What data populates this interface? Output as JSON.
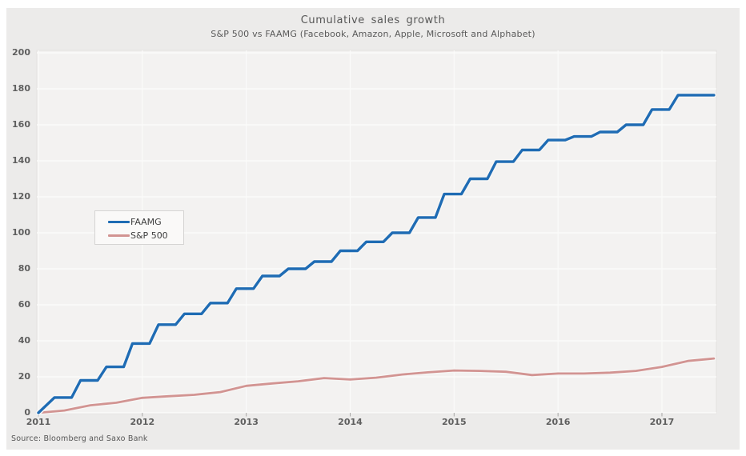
{
  "chart": {
    "title": "Cumulative  sales growth",
    "subtitle": "S&P 500 vs FAAMG (Facebook, Amazon, Apple, Microsoft and Alphabet)",
    "source_note": "Source: Bloomberg and Saxo Bank",
    "colors": {
      "panel_background": "#ecebea",
      "plot_background": "#f3f2f1",
      "plot_border": "#e3e2e0",
      "gridline": "#fbfbfa",
      "tick_text": "#5f5f5f",
      "title_text": "#565656",
      "faamg_line": "#1f6cb4",
      "sp500_line": "#d29492",
      "line_halo": "#f7f6f5"
    }
  },
  "chart_data": {
    "type": "line",
    "title": "Cumulative  sales growth",
    "subtitle": "S&P 500 vs FAAMG (Facebook, Amazon, Apple, Microsoft and Alphabet)",
    "source_note": "Source: Bloomberg and Saxo Bank",
    "grid": true,
    "x_axis": {
      "ticks": [
        2011,
        2012,
        2013,
        2014,
        2015,
        2016,
        2017
      ],
      "range": [
        2011,
        2017.5
      ]
    },
    "y_axis": {
      "ticks": [
        0,
        20,
        40,
        60,
        80,
        100,
        120,
        140,
        160,
        180,
        200
      ],
      "range": [
        0,
        200
      ]
    },
    "legend": {
      "position": "middle-left",
      "entries": [
        {
          "name": "FAAMG",
          "color": "#1f6cb4"
        },
        {
          "name": "S&P 500",
          "color": "#d29492"
        }
      ]
    },
    "series": [
      {
        "name": "FAAMG",
        "style": "step",
        "color": "#1f6cb4",
        "x_start": 2011.0,
        "x_step": 0.25,
        "note": "cumulative sales growth %, quarterly steps; value i applies to quarter starting at x_start + i*x_step",
        "values": [
          8.5,
          18,
          25.5,
          38.5,
          49,
          55,
          61,
          69,
          76,
          80,
          84,
          90,
          95,
          100,
          108.5,
          121.5,
          130,
          139.5,
          146,
          151.5,
          153.5,
          156,
          160,
          168.5,
          176.5,
          176.5
        ]
      },
      {
        "name": "S&P 500",
        "style": "line",
        "color": "#d29492",
        "x_start": 2011.0,
        "x_step": 0.25,
        "note": "cumulative sales growth %, point j at x_start + j*x_step",
        "values": [
          0,
          1.3,
          4.2,
          5.6,
          8.3,
          9.2,
          10,
          11.5,
          15,
          16.3,
          17.5,
          19.3,
          18.5,
          19.5,
          21.3,
          22.5,
          23.5,
          23.3,
          22.8,
          21,
          21.8,
          21.8,
          22.3,
          23.3,
          25.5,
          28.8,
          30.2
        ]
      }
    ]
  }
}
